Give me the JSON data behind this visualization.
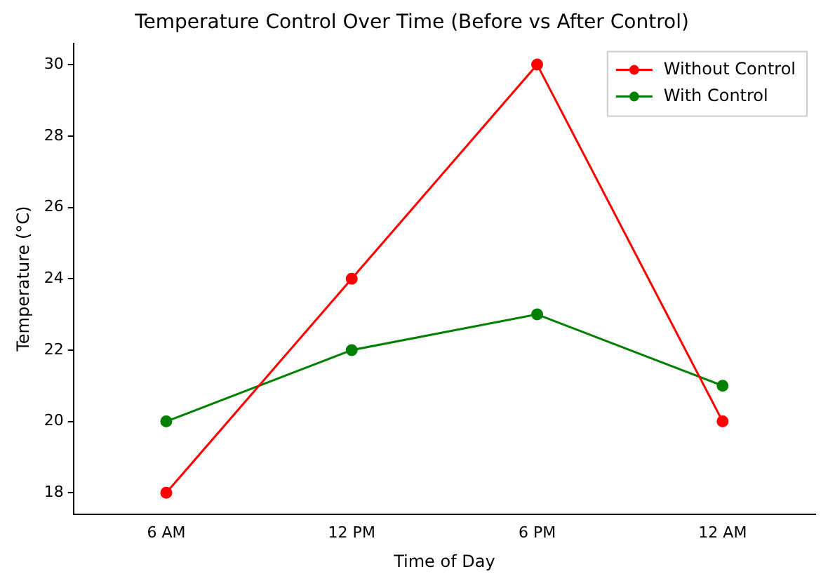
{
  "chart_data": {
    "type": "line",
    "title": "Temperature Control Over Time (Before vs After Control)",
    "xlabel": "Time of Day",
    "ylabel": "Temperature (°C)",
    "categories": [
      "6 AM",
      "12 PM",
      "6 PM",
      "12 AM"
    ],
    "series": [
      {
        "name": "Without Control",
        "color": "#ff0000",
        "values": [
          18,
          24,
          30,
          20
        ]
      },
      {
        "name": "With Control",
        "color": "#008000",
        "values": [
          20,
          22,
          23,
          21
        ]
      }
    ],
    "ylim": [
      17.4,
      30.6
    ],
    "yticks": [
      18,
      20,
      22,
      24,
      26,
      28,
      30
    ],
    "grid": false,
    "legend": "top right",
    "marker": "circle",
    "line_style": "solid"
  }
}
